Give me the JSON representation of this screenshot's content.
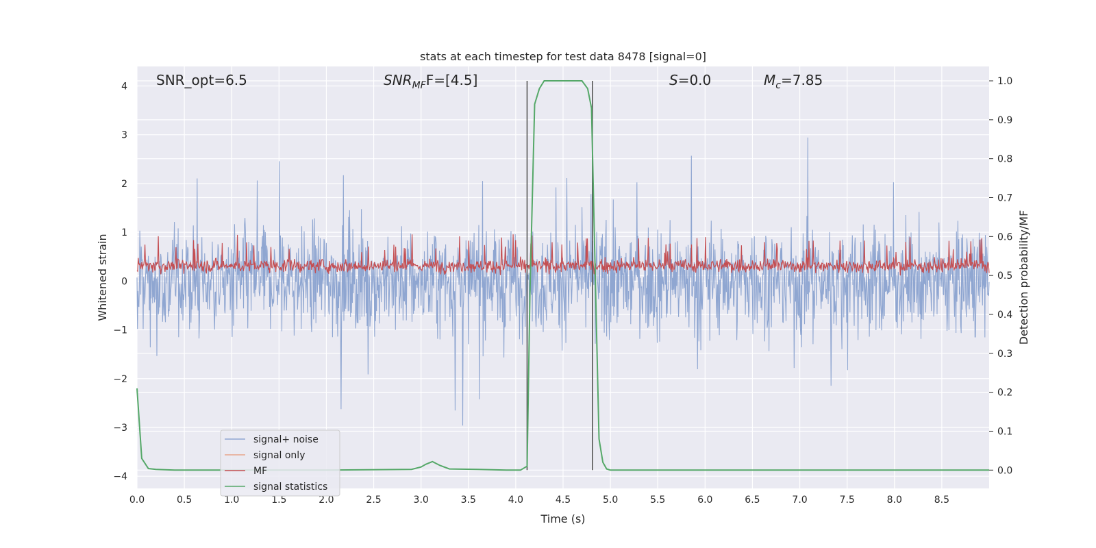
{
  "chart_data": {
    "type": "line",
    "title": "stats at each timestep for test data 8478 [signal=0]",
    "xlabel": "Time (s)",
    "ylabel_left": "Whitened strain",
    "ylabel_right": "Detection probability/MF",
    "xlim": [
      0.0,
      9.0
    ],
    "ylim_left": [
      -4.25,
      4.4
    ],
    "ylim_right": [
      -0.047,
      1.037
    ],
    "x_ticks": [
      "0.0",
      "0.5",
      "1.0",
      "1.5",
      "2.0",
      "2.5",
      "3.0",
      "3.5",
      "4.0",
      "4.5",
      "5.0",
      "5.5",
      "6.0",
      "6.5",
      "7.0",
      "7.5",
      "8.0",
      "8.5"
    ],
    "y_ticks_left": [
      "4",
      "3",
      "2",
      "1",
      "0",
      "−1",
      "−2",
      "−3",
      "−4"
    ],
    "y_ticks_right": [
      "1.0",
      "0.9",
      "0.8",
      "0.7",
      "0.6",
      "0.5",
      "0.4",
      "0.3",
      "0.2",
      "0.1",
      "0.0"
    ],
    "grid": true,
    "legend_position": "lower-left",
    "annotations": {
      "snr_opt": "SNR_opt=6.5",
      "snr_mf_main": "SNR",
      "snr_mf_sub": "MF",
      "snr_mf_rest": "F=[4.5]",
      "s_main": "S",
      "s_rest": "=0.0",
      "mc_main": "M",
      "mc_sub": "c",
      "mc_rest": "=7.85"
    },
    "vertical_lines_x": [
      4.12,
      4.81
    ],
    "series": [
      {
        "name": "signal+ noise",
        "color": "#8fa6d1",
        "axis": "left",
        "typical_range": [
          -1.5,
          1.6
        ],
        "peak_range": [
          -3.9,
          4.0
        ]
      },
      {
        "name": "signal only",
        "color": "#e8a68c",
        "axis": "left"
      },
      {
        "name": "MF",
        "color": "#c44e52",
        "axis": "right",
        "typical_range": [
          0.5,
          0.55
        ],
        "peak_range": [
          0.5,
          0.62
        ]
      },
      {
        "name": "signal statistics",
        "color": "#55a868",
        "axis": "right",
        "x": [
          0.0,
          0.05,
          0.12,
          0.2,
          0.4,
          1.0,
          2.0,
          2.9,
          3.0,
          3.05,
          3.12,
          3.2,
          3.3,
          3.6,
          3.9,
          4.05,
          4.12,
          4.15,
          4.2,
          4.25,
          4.3,
          4.5,
          4.7,
          4.76,
          4.8,
          4.84,
          4.88,
          4.92,
          4.96,
          5.0,
          6.0,
          7.0,
          8.0,
          9.0
        ],
        "y": [
          0.21,
          0.03,
          0.004,
          0.002,
          0.0,
          0.0,
          0.0,
          0.002,
          0.008,
          0.015,
          0.022,
          0.012,
          0.003,
          0.002,
          0.0,
          0.0,
          0.01,
          0.45,
          0.94,
          0.98,
          1.0,
          1.0,
          1.0,
          0.98,
          0.93,
          0.5,
          0.08,
          0.02,
          0.003,
          0.0,
          0.0,
          0.0,
          0.0,
          0.0
        ]
      }
    ]
  }
}
